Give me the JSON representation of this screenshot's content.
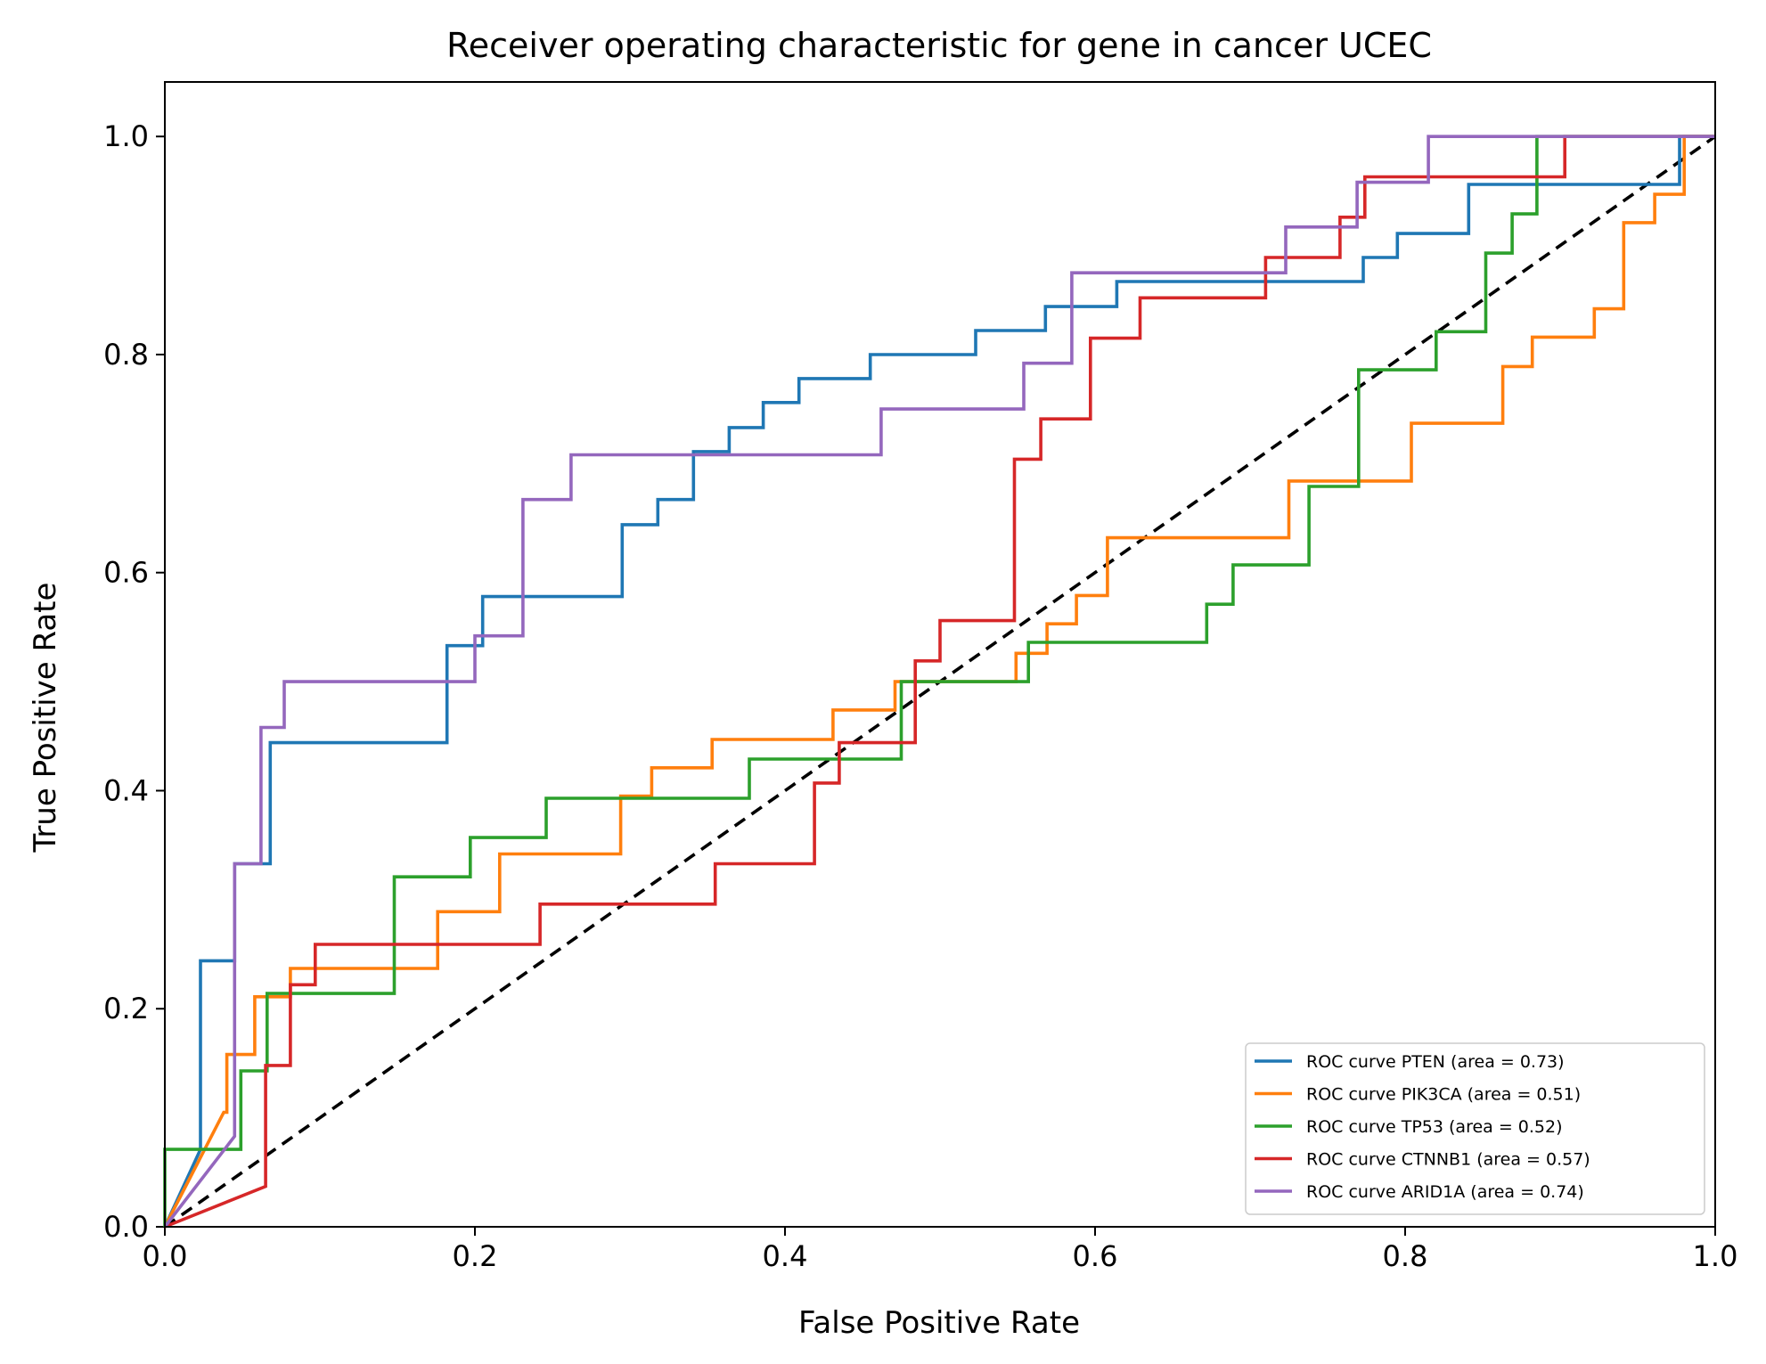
{
  "chart_data": {
    "type": "line",
    "title": "Receiver operating characteristic for gene in cancer UCEC",
    "xlabel": "False Positive Rate",
    "ylabel": "True Positive Rate",
    "xlim": [
      0.0,
      1.0
    ],
    "ylim": [
      0.0,
      1.05
    ],
    "xticks": [
      "0.0",
      "0.2",
      "0.4",
      "0.6",
      "0.8",
      "1.0"
    ],
    "yticks": [
      "0.0",
      "0.2",
      "0.4",
      "0.6",
      "0.8",
      "1.0"
    ],
    "grid": false,
    "legend_position": "lower-right",
    "diagonal": {
      "x": [
        0,
        1
      ],
      "y": [
        0,
        1
      ],
      "color": "#000000",
      "style": "dashed"
    },
    "series": [
      {
        "name": "ROC curve PTEN (area = 0.73)",
        "color": "#1f77b4",
        "x": [
          0,
          0.023,
          0.023,
          0.045,
          0.045,
          0.068,
          0.068,
          0.182,
          0.182,
          0.205,
          0.205,
          0.295,
          0.295,
          0.318,
          0.318,
          0.341,
          0.341,
          0.364,
          0.364,
          0.386,
          0.386,
          0.409,
          0.409,
          0.455,
          0.455,
          0.523,
          0.523,
          0.568,
          0.568,
          0.614,
          0.614,
          0.773,
          0.773,
          0.795,
          0.795,
          0.841,
          0.841,
          0.977,
          0.977,
          1.0
        ],
        "y": [
          0,
          0.071,
          0.244,
          0.244,
          0.333,
          0.333,
          0.444,
          0.444,
          0.533,
          0.533,
          0.578,
          0.578,
          0.644,
          0.644,
          0.667,
          0.667,
          0.711,
          0.711,
          0.733,
          0.733,
          0.756,
          0.756,
          0.778,
          0.778,
          0.8,
          0.8,
          0.822,
          0.822,
          0.844,
          0.844,
          0.867,
          0.867,
          0.889,
          0.889,
          0.911,
          0.911,
          0.956,
          0.956,
          1.0,
          1.0
        ]
      },
      {
        "name": "ROC curve PIK3CA (area = 0.51)",
        "color": "#ff7f0e",
        "x": [
          0,
          0.038,
          0.04,
          0.04,
          0.058,
          0.058,
          0.081,
          0.081,
          0.176,
          0.176,
          0.216,
          0.216,
          0.294,
          0.294,
          0.314,
          0.314,
          0.353,
          0.353,
          0.431,
          0.431,
          0.471,
          0.471,
          0.549,
          0.549,
          0.569,
          0.569,
          0.588,
          0.588,
          0.608,
          0.608,
          0.725,
          0.725,
          0.804,
          0.804,
          0.863,
          0.863,
          0.882,
          0.882,
          0.922,
          0.922,
          0.941,
          0.941,
          0.961,
          0.961,
          0.98,
          0.98,
          1.0
        ],
        "y": [
          0,
          0.105,
          0.105,
          0.158,
          0.158,
          0.211,
          0.211,
          0.237,
          0.237,
          0.289,
          0.289,
          0.342,
          0.342,
          0.395,
          0.395,
          0.421,
          0.421,
          0.447,
          0.447,
          0.474,
          0.474,
          0.5,
          0.5,
          0.526,
          0.526,
          0.553,
          0.553,
          0.579,
          0.579,
          0.632,
          0.632,
          0.684,
          0.684,
          0.737,
          0.737,
          0.789,
          0.789,
          0.816,
          0.816,
          0.842,
          0.842,
          0.921,
          0.921,
          0.947,
          0.947,
          1.0,
          1.0
        ]
      },
      {
        "name": "ROC curve TP53 (area = 0.52)",
        "color": "#2ca02c",
        "x": [
          0,
          0,
          0.049,
          0.049,
          0.066,
          0.066,
          0.148,
          0.148,
          0.197,
          0.197,
          0.246,
          0.246,
          0.377,
          0.377,
          0.475,
          0.475,
          0.557,
          0.557,
          0.672,
          0.672,
          0.689,
          0.689,
          0.738,
          0.738,
          0.77,
          0.77,
          0.82,
          0.82,
          0.852,
          0.852,
          0.869,
          0.869,
          0.885,
          0.885,
          1.0
        ],
        "y": [
          0,
          0.071,
          0.071,
          0.143,
          0.143,
          0.214,
          0.214,
          0.321,
          0.321,
          0.357,
          0.357,
          0.393,
          0.393,
          0.429,
          0.429,
          0.5,
          0.5,
          0.536,
          0.536,
          0.571,
          0.571,
          0.607,
          0.607,
          0.679,
          0.679,
          0.786,
          0.786,
          0.821,
          0.821,
          0.893,
          0.893,
          0.929,
          0.929,
          1.0,
          1.0
        ]
      },
      {
        "name": "ROC curve CTNNB1 (area = 0.57)",
        "color": "#d62728",
        "x": [
          0,
          0.065,
          0.065,
          0.081,
          0.081,
          0.097,
          0.097,
          0.242,
          0.242,
          0.355,
          0.355,
          0.419,
          0.419,
          0.435,
          0.435,
          0.484,
          0.484,
          0.5,
          0.5,
          0.548,
          0.548,
          0.565,
          0.565,
          0.597,
          0.597,
          0.629,
          0.629,
          0.71,
          0.71,
          0.758,
          0.758,
          0.774,
          0.774,
          0.903,
          0.903,
          1.0
        ],
        "y": [
          0,
          0.037,
          0.148,
          0.148,
          0.222,
          0.222,
          0.259,
          0.259,
          0.296,
          0.296,
          0.333,
          0.333,
          0.407,
          0.407,
          0.444,
          0.444,
          0.519,
          0.519,
          0.556,
          0.556,
          0.704,
          0.704,
          0.741,
          0.741,
          0.815,
          0.815,
          0.852,
          0.852,
          0.889,
          0.889,
          0.926,
          0.926,
          0.963,
          0.963,
          1.0,
          1.0
        ]
      },
      {
        "name": "ROC curve ARID1A (area = 0.74)",
        "color": "#9467bd",
        "x": [
          0,
          0.045,
          0.045,
          0.062,
          0.062,
          0.077,
          0.077,
          0.2,
          0.2,
          0.231,
          0.231,
          0.262,
          0.262,
          0.462,
          0.462,
          0.554,
          0.554,
          0.585,
          0.585,
          0.723,
          0.723,
          0.769,
          0.769,
          0.815,
          0.815,
          1.0
        ],
        "y": [
          0,
          0.083,
          0.333,
          0.333,
          0.458,
          0.458,
          0.5,
          0.5,
          0.542,
          0.542,
          0.667,
          0.667,
          0.708,
          0.708,
          0.75,
          0.75,
          0.792,
          0.792,
          0.875,
          0.875,
          0.917,
          0.917,
          0.958,
          0.958,
          1.0,
          1.0
        ]
      }
    ]
  }
}
